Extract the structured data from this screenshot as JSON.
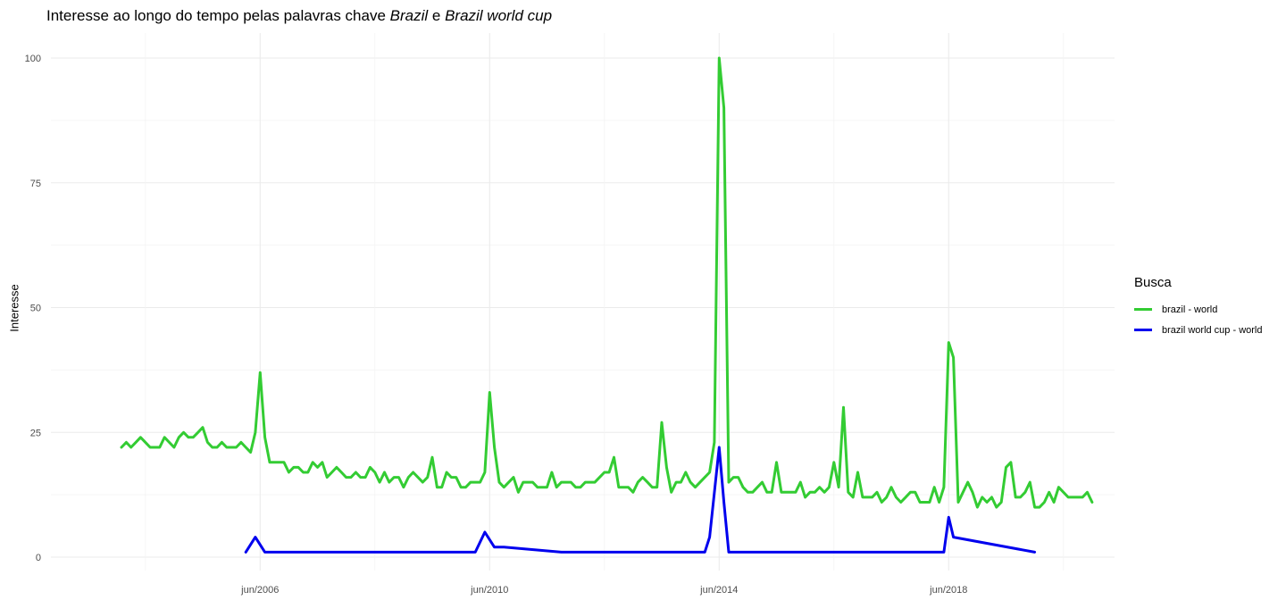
{
  "title_parts": [
    "Interesse ao longo do tempo pelas palavras chave ",
    "Brazil",
    " e ",
    "Brazil world cup"
  ],
  "chart_data": {
    "type": "line",
    "title": "Interesse ao longo do tempo pelas palavras chave Brazil e Brazil world cup",
    "xlabel": "",
    "ylabel": "Interesse",
    "xlim": [
      "2004-01",
      "2021-08"
    ],
    "ylim": [
      0,
      100
    ],
    "x_ticks": [
      "jun/2006",
      "jun/2010",
      "jun/2014",
      "jun/2018"
    ],
    "y_ticks": [
      0,
      25,
      50,
      75,
      100
    ],
    "grid": true,
    "legend_title": "Busca",
    "legend_position": "right",
    "series": [
      {
        "name": "brazil - world",
        "color": "#33cc33",
        "start": "2004-01",
        "values": [
          22,
          23,
          22,
          23,
          24,
          23,
          22,
          22,
          22,
          24,
          23,
          22,
          24,
          25,
          24,
          24,
          25,
          26,
          23,
          22,
          22,
          23,
          22,
          22,
          22,
          23,
          22,
          21,
          25,
          37,
          24,
          19,
          19,
          19,
          19,
          17,
          18,
          18,
          17,
          17,
          19,
          18,
          19,
          16,
          17,
          18,
          17,
          16,
          16,
          17,
          16,
          16,
          18,
          17,
          15,
          17,
          15,
          16,
          16,
          14,
          16,
          17,
          16,
          15,
          16,
          20,
          14,
          14,
          17,
          16,
          16,
          14,
          14,
          15,
          15,
          15,
          17,
          33,
          22,
          15,
          14,
          15,
          16,
          13,
          15,
          15,
          15,
          14,
          14,
          14,
          17,
          14,
          15,
          15,
          15,
          14,
          14,
          15,
          15,
          15,
          16,
          17,
          17,
          20,
          14,
          14,
          14,
          13,
          15,
          16,
          15,
          14,
          14,
          27,
          18,
          13,
          15,
          15,
          17,
          15,
          14,
          15,
          16,
          17,
          23,
          100,
          90,
          15,
          16,
          16,
          14,
          13,
          13,
          14,
          15,
          13,
          13,
          19,
          13,
          13,
          13,
          13,
          15,
          12,
          13,
          13,
          14,
          13,
          14,
          19,
          14,
          30,
          13,
          12,
          17,
          12,
          12,
          12,
          13,
          11,
          12,
          14,
          12,
          11,
          12,
          13,
          13,
          11,
          11,
          11,
          14,
          11,
          14,
          43,
          40,
          11,
          13,
          15,
          13,
          10,
          12,
          11,
          12,
          10,
          11,
          18,
          19,
          12,
          12,
          13,
          15,
          10,
          10,
          11,
          13,
          11,
          14,
          13,
          12,
          12,
          12,
          12,
          13,
          11
        ]
      },
      {
        "name": "brazil world cup - world",
        "color": "#0000ee",
        "points": [
          [
            "2006-03",
            1
          ],
          [
            "2006-05",
            4
          ],
          [
            "2006-07",
            1
          ],
          [
            "2010-03",
            1
          ],
          [
            "2010-05",
            5
          ],
          [
            "2010-07",
            2
          ],
          [
            "2010-09",
            2
          ],
          [
            "2011-09",
            1
          ],
          [
            "2014-03",
            1
          ],
          [
            "2014-04",
            4
          ],
          [
            "2014-06",
            22
          ],
          [
            "2014-07",
            11
          ],
          [
            "2014-08",
            1
          ],
          [
            "2018-03",
            1
          ],
          [
            "2018-05",
            1
          ],
          [
            "2018-06",
            8
          ],
          [
            "2018-07",
            4
          ],
          [
            "2019-12",
            1
          ]
        ]
      }
    ]
  }
}
